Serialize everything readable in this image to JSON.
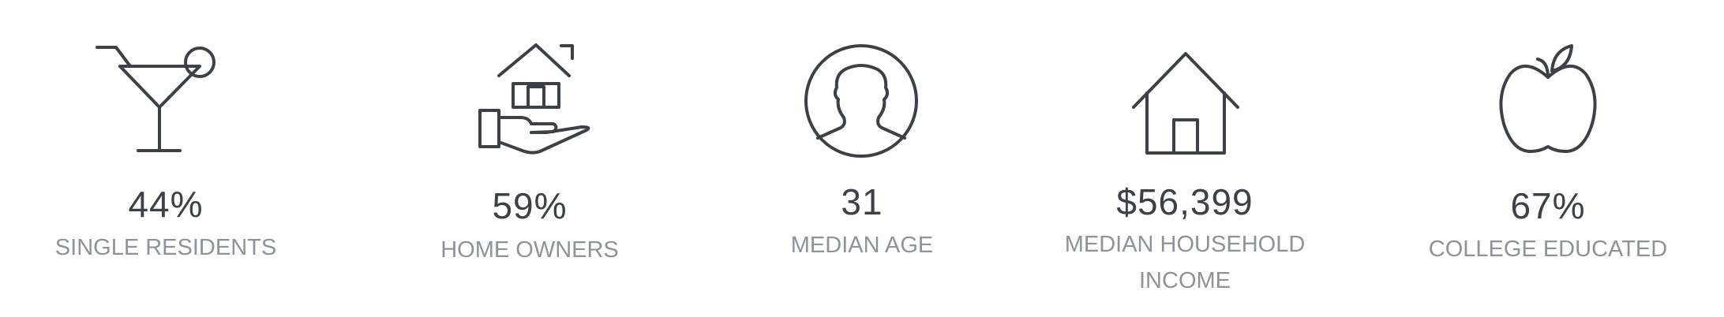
{
  "stats": [
    {
      "icon": "cocktail-glass-icon",
      "value": "44%",
      "label": "SINGLE RESIDENTS"
    },
    {
      "icon": "home-in-hand-icon",
      "value": "59%",
      "label": "HOME OWNERS"
    },
    {
      "icon": "person-avatar-icon",
      "value": "31",
      "label": "MEDIAN AGE"
    },
    {
      "icon": "house-icon",
      "value": "$56,399",
      "label": "MEDIAN HOUSEHOLD INCOME"
    },
    {
      "icon": "apple-icon",
      "value": "67%",
      "label": "COLLEGE EDUCATED"
    }
  ],
  "colors": {
    "icon": "#3c4047",
    "value": "#3c4047",
    "label": "#8e939b",
    "background": "#ffffff"
  }
}
